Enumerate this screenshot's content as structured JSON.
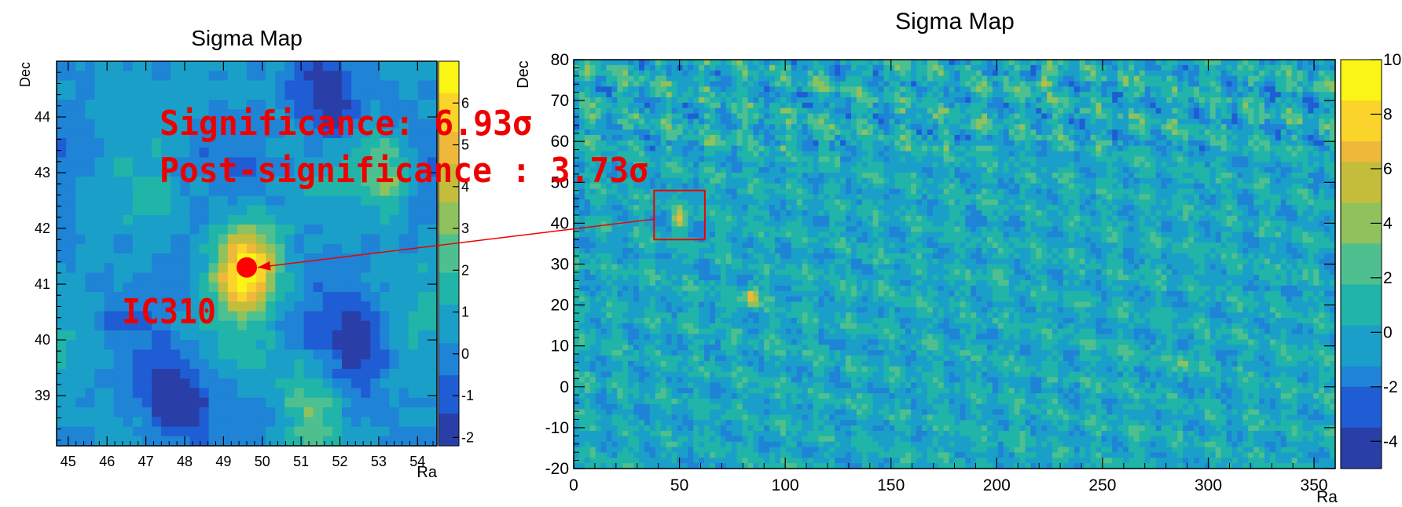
{
  "chart_data": [
    {
      "type": "heatmap",
      "title": "Sigma Map",
      "xlabel": "Ra",
      "ylabel": "Dec",
      "xlim": [
        44.7,
        54.5
      ],
      "ylim": [
        38.1,
        45.0
      ],
      "x_ticks": [
        "45",
        "46",
        "47",
        "48",
        "49",
        "50",
        "51",
        "52",
        "53",
        "54"
      ],
      "y_ticks": [
        "39",
        "40",
        "41",
        "42",
        "43",
        "44"
      ],
      "colorbar": {
        "min": -2.2,
        "max": 7.0,
        "ticks": [
          "-2",
          "-1",
          "0",
          "1",
          "2",
          "3",
          "4",
          "5",
          "6"
        ]
      },
      "peak": {
        "ra": 49.6,
        "dec": 41.3,
        "value": 6.93
      },
      "cold_regions": [
        {
          "ra": 47.8,
          "dec": 38.9,
          "value": -2.0
        },
        {
          "ra": 51.6,
          "dec": 44.3,
          "value": -2.0
        },
        {
          "ra": 52.5,
          "dec": 39.9,
          "value": -1.2
        }
      ],
      "warm_regions": [
        {
          "ra": 51.3,
          "dec": 38.9,
          "value": 3.0
        },
        {
          "ra": 53.2,
          "dec": 43.0,
          "value": 3.5
        }
      ],
      "source_label": "IC310",
      "annotations": [
        "Significance: 6.93σ",
        "Post-significance : 3.73σ"
      ]
    },
    {
      "type": "heatmap",
      "title": "Sigma Map",
      "xlabel": "Ra",
      "ylabel": "Dec",
      "xlim": [
        0,
        360
      ],
      "ylim": [
        -20,
        80
      ],
      "x_ticks": [
        "0",
        "50",
        "100",
        "150",
        "200",
        "250",
        "300",
        "350"
      ],
      "y_ticks": [
        "-20",
        "-10",
        "0",
        "10",
        "20",
        "30",
        "40",
        "50",
        "60",
        "70",
        "80"
      ],
      "colorbar": {
        "min": -5,
        "max": 10,
        "ticks": [
          "-4",
          "-2",
          "0",
          "2",
          "4",
          "6",
          "8",
          "10"
        ]
      },
      "hotspots": [
        {
          "ra": 50,
          "dec": 41,
          "value": 7.0
        },
        {
          "ra": 84,
          "dec": 22,
          "value": 7.5
        },
        {
          "ra": 222,
          "dec": 75,
          "value": 6.0
        },
        {
          "ra": 288,
          "dec": 6,
          "value": 5.0
        }
      ],
      "highlight_box": {
        "ra": [
          38,
          62
        ],
        "dec": [
          36,
          48
        ]
      }
    }
  ],
  "colors": {
    "annotation": "#ee0000",
    "marker": "#ff0000",
    "cmap": [
      "#2a3ea8",
      "#1f5dd4",
      "#1f83d6",
      "#1aa0c8",
      "#21b4a8",
      "#4ec090",
      "#8fc25c",
      "#c4bd3c",
      "#eeb93a",
      "#fad42a",
      "#fbf516"
    ]
  }
}
